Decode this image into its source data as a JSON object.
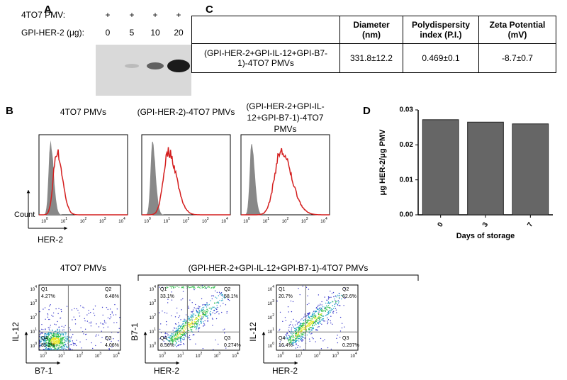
{
  "panel_a": {
    "letter": "A",
    "row_labels": [
      "4TO7 PMV:",
      "GPI-HER-2 (μg):"
    ],
    "pmv_marks": [
      "+",
      "+",
      "+",
      "+"
    ],
    "doses": [
      "0",
      "5",
      "10",
      "20"
    ]
  },
  "panel_b": {
    "letter": "B",
    "histograms": [
      {
        "title": "4TO7 PMVs"
      },
      {
        "title": "(GPI-HER-2)-4TO7 PMVs"
      },
      {
        "title": "(GPI-HER-2+GPI-IL-12+GPI-B7-1)-4TO7 PMVs"
      }
    ],
    "count_label": "Count",
    "her2_label": "HER-2",
    "tick_base": "10",
    "tick_exponents": [
      "0",
      "1",
      "2",
      "3",
      "4"
    ],
    "dot_plots": {
      "single_title": "4TO7 PMVs",
      "group_title": "(GPI-HER-2+GPI-IL-12+GPI-B7-1)-4TO7 PMVs",
      "plots": [
        {
          "x_label": "B7-1",
          "y_label": "IL-12",
          "quadrants": [
            {
              "name": "Q1",
              "percent": "4.27%"
            },
            {
              "name": "Q2",
              "percent": "6.48%"
            },
            {
              "name": "Q3",
              "percent": "4.06%"
            },
            {
              "name": "Q4",
              "percent": "85.2%"
            }
          ]
        },
        {
          "x_label": "HER-2",
          "y_label": "B7-1",
          "quadrants": [
            {
              "name": "Q1",
              "percent": "33.1%"
            },
            {
              "name": "Q2",
              "percent": "58.1%"
            },
            {
              "name": "Q3",
              "percent": "0.274%"
            },
            {
              "name": "Q4",
              "percent": "8.56%"
            }
          ]
        },
        {
          "x_label": "HER-2",
          "y_label": "IL-12",
          "quadrants": [
            {
              "name": "Q1",
              "percent": "20.7%"
            },
            {
              "name": "Q2",
              "percent": "62.6%"
            },
            {
              "name": "Q3",
              "percent": "0.297%"
            },
            {
              "name": "Q4",
              "percent": "16.4%"
            }
          ]
        }
      ]
    }
  },
  "panel_c": {
    "letter": "C",
    "header": [
      "",
      "Diameter (nm)",
      "Polydispersity index (P.I.)",
      "Zeta Potential (mV)"
    ],
    "rows": [
      [
        "(GPI-HER-2+GPI-IL-12+GPI-B7-1)-4TO7 PMVs",
        "331.8±12.2",
        "0.469±0.1",
        "-8.7±0.7"
      ]
    ]
  },
  "chart_data": {
    "type": "bar",
    "panel_letter": "D",
    "categories": [
      "0",
      "3",
      "7"
    ],
    "values": [
      0.0272,
      0.0265,
      0.026
    ],
    "color": "#666666",
    "x_label": "Days of storage",
    "y_label": "μg HER-2/μg PMV",
    "ylim": [
      0,
      0.03
    ],
    "yticks": [
      {
        "value": 0,
        "label": "0.00"
      },
      {
        "value": 0.01,
        "label": "0.01"
      },
      {
        "value": 0.02,
        "label": "0.02"
      },
      {
        "value": 0.03,
        "label": "0.03"
      }
    ]
  }
}
